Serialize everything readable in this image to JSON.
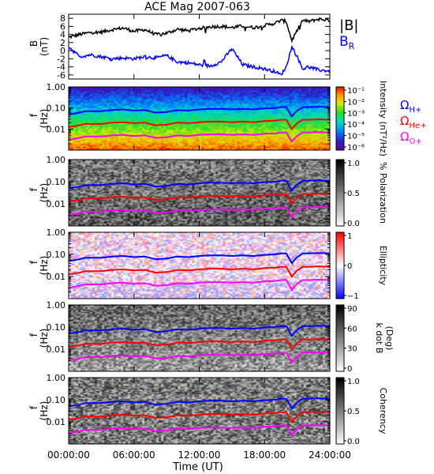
{
  "title": "ACE Mag 2007-063",
  "xlabel": "Time (UT)",
  "x_ticks": [
    "00:00:00",
    "06:00:00",
    "12:00:00",
    "18:00:00",
    "24:00:00"
  ],
  "freq_ticks": [
    "1.00",
    "0.10",
    "0.01"
  ],
  "chart_data": [
    {
      "type": "line",
      "panel": "magnetic-field",
      "ylabel": "B",
      "ylabel_unit": "(nT)",
      "ylim": [
        -7,
        9
      ],
      "y_ticks": [
        "8",
        "6",
        "4",
        "2",
        "0",
        "-2",
        "-4",
        "-6"
      ],
      "series": [
        {
          "name": "|B|",
          "color": "#000000",
          "x": [
            0,
            1,
            2,
            3,
            4,
            5,
            6,
            7,
            8,
            9,
            10,
            11,
            12,
            13,
            14,
            15,
            16,
            17,
            18,
            19,
            19.5,
            20,
            20.5,
            21,
            21.5,
            22,
            23,
            24
          ],
          "y": [
            3.3,
            4.0,
            4.5,
            4.6,
            5.2,
            5.6,
            4.8,
            5.2,
            4.0,
            4.3,
            5.3,
            4.9,
            5.5,
            5.9,
            6.0,
            5.7,
            6.1,
            5.7,
            6.2,
            6.8,
            7.5,
            7.2,
            2.5,
            5.0,
            7.5,
            7.2,
            7.8,
            7.5
          ]
        },
        {
          "name": "B_R",
          "color": "#0000ff",
          "x": [
            0,
            1,
            2,
            3,
            4,
            5,
            6,
            7,
            8,
            9,
            10,
            11,
            12,
            13,
            14,
            15,
            16,
            17,
            18,
            19,
            19.5,
            20,
            20.5,
            21,
            21.5,
            22,
            23,
            24
          ],
          "y": [
            1.0,
            -1.5,
            -1.0,
            -1.5,
            -2.0,
            -1.8,
            -2.0,
            -1.5,
            -1.8,
            -1.2,
            -2.8,
            -3.0,
            -3.5,
            -3.8,
            -2.8,
            0.5,
            -3.5,
            -4.0,
            -4.5,
            -5.2,
            -6.0,
            -4.0,
            1.0,
            -1.5,
            -4.5,
            -4.0,
            -4.8,
            -5.0
          ]
        }
      ]
    },
    {
      "type": "heatmap",
      "panel": "intensity",
      "ylabel": "f",
      "ylabel_unit": "(Hz)",
      "colorbar_label": "Intensity (nT²/Hz)",
      "colorbar_ticks": [
        "10⁻¹",
        "10⁻²",
        "10⁻³",
        "10⁻⁴",
        "10⁻⁵",
        "10⁻⁶"
      ],
      "colormap": "rainbow",
      "legend": [
        "Ω_H+",
        "Ω_He+",
        "Ω_O+"
      ],
      "legend_colors": [
        "#0000ff",
        "#ff0000",
        "#ff00ff"
      ]
    },
    {
      "type": "heatmap",
      "panel": "polarization",
      "ylabel": "f",
      "ylabel_unit": "(Hz)",
      "colorbar_label": "% Polarization",
      "colorbar_ticks": [
        "1.0",
        "0.5",
        "0.0"
      ],
      "colormap": "grayscale"
    },
    {
      "type": "heatmap",
      "panel": "ellipticity",
      "ylabel": "f",
      "ylabel_unit": "(Hz)",
      "colorbar_label": "Ellipticity",
      "colorbar_ticks": [
        "1",
        "0",
        "−1"
      ],
      "colormap": "red-white-blue"
    },
    {
      "type": "heatmap",
      "panel": "k-dot-b",
      "ylabel": "f",
      "ylabel_unit": "(Hz)",
      "colorbar_label": "k dot B",
      "colorbar_unit": "(Deg)",
      "colorbar_ticks": [
        "90",
        "60",
        "30",
        "0"
      ],
      "colormap": "grayscale"
    },
    {
      "type": "heatmap",
      "panel": "coherency",
      "ylabel": "f",
      "ylabel_unit": "(Hz)",
      "colorbar_label": "Coherency",
      "colorbar_ticks": [
        "1.0",
        "0.5",
        "0.0"
      ],
      "colormap": "grayscale"
    }
  ],
  "gyrofrequency_lines": {
    "x_hours": [
      0,
      1,
      1.5,
      2,
      3,
      4,
      5,
      6,
      7,
      8,
      9,
      10,
      11,
      12,
      13,
      14,
      15,
      16,
      17,
      18,
      19,
      19.5,
      20,
      20.5,
      21,
      21.5,
      22,
      23,
      24
    ],
    "H": [
      0.05,
      0.06,
      0.07,
      0.07,
      0.07,
      0.08,
      0.085,
      0.075,
      0.08,
      0.06,
      0.065,
      0.08,
      0.075,
      0.085,
      0.09,
      0.09,
      0.085,
      0.09,
      0.085,
      0.095,
      0.1,
      0.11,
      0.11,
      0.04,
      0.075,
      0.11,
      0.11,
      0.115,
      0.11
    ],
    "He": [
      0.0125,
      0.015,
      0.0175,
      0.0175,
      0.0175,
      0.02,
      0.021,
      0.019,
      0.02,
      0.015,
      0.016,
      0.02,
      0.019,
      0.021,
      0.0225,
      0.0225,
      0.021,
      0.0225,
      0.021,
      0.024,
      0.025,
      0.0275,
      0.0275,
      0.01,
      0.019,
      0.0275,
      0.0275,
      0.029,
      0.0275
    ],
    "O": [
      0.0031,
      0.0038,
      0.0044,
      0.0044,
      0.0044,
      0.005,
      0.0053,
      0.0047,
      0.005,
      0.0038,
      0.004,
      0.005,
      0.0047,
      0.0053,
      0.0056,
      0.0056,
      0.0053,
      0.0056,
      0.0053,
      0.006,
      0.0063,
      0.0069,
      0.0069,
      0.0025,
      0.0047,
      0.0069,
      0.0069,
      0.0072,
      0.0069
    ],
    "colors": {
      "H": "#0000ff",
      "He": "#ff0000",
      "O": "#ff00ff"
    }
  }
}
